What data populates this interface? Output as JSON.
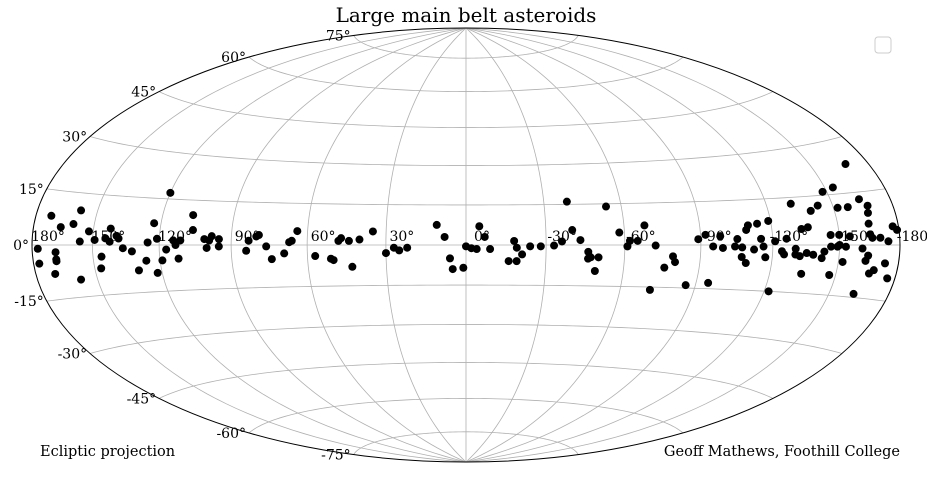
{
  "chart_data": {
    "type": "scatter",
    "title": "Large main belt asteroids",
    "projection": "hammer",
    "grid": true,
    "legend": {
      "placement": "top-right",
      "entries": []
    },
    "marker_color": "#000000",
    "grid_color": "#b0b0b0",
    "lat_ticks": [
      {
        "value": 75,
        "label": "75°"
      },
      {
        "value": 60,
        "label": "60°"
      },
      {
        "value": 45,
        "label": "45°"
      },
      {
        "value": 30,
        "label": "30°"
      },
      {
        "value": 15,
        "label": "15°"
      },
      {
        "value": 0,
        "label": "0°"
      },
      {
        "value": -15,
        "label": "-15°"
      },
      {
        "value": -30,
        "label": "-30°"
      },
      {
        "value": -45,
        "label": "-45°"
      },
      {
        "value": -60,
        "label": "-60°"
      },
      {
        "value": -75,
        "label": "-75°"
      }
    ],
    "lon_ticks": [
      {
        "value": 180,
        "label": "180°"
      },
      {
        "value": 150,
        "label": "150°"
      },
      {
        "value": 120,
        "label": "120°"
      },
      {
        "value": 90,
        "label": "90°"
      },
      {
        "value": 60,
        "label": "60°"
      },
      {
        "value": 30,
        "label": "30°"
      },
      {
        "value": 0,
        "label": "0°"
      },
      {
        "value": -30,
        "label": "-30°"
      },
      {
        "value": -60,
        "label": "-60°"
      },
      {
        "value": -90,
        "label": "-90°"
      },
      {
        "value": -120,
        "label": "-120°"
      },
      {
        "value": -150,
        "label": "-150°"
      },
      {
        "value": -180,
        "label": "-180°"
      }
    ],
    "annotations": {
      "left": "Ecliptic projection",
      "right": "Geoff Mathews, Foothill College"
    },
    "points": [
      [
        177,
        -1
      ],
      [
        177,
        -5
      ],
      [
        172,
        8
      ],
      [
        170,
        -8
      ],
      [
        168,
        -2
      ],
      [
        168,
        -4
      ],
      [
        168,
        -4.5
      ],
      [
        166,
        5
      ],
      [
        160,
        6
      ],
      [
        158,
        10
      ],
      [
        158,
        -10
      ],
      [
        156,
        1
      ],
      [
        152,
        4
      ],
      [
        149,
        1.5
      ],
      [
        147,
        -7
      ],
      [
        146,
        -3.5
      ],
      [
        144,
        2
      ],
      [
        142,
        1
      ],
      [
        142,
        5
      ],
      [
        139,
        2.8
      ],
      [
        138,
        2
      ],
      [
        136,
        -1
      ],
      [
        132,
        -2
      ],
      [
        130,
        -8
      ],
      [
        126,
        -5
      ],
      [
        125,
        0.8
      ],
      [
        123,
        7
      ],
      [
        122,
        -9
      ],
      [
        121,
        2
      ],
      [
        120,
        17
      ],
      [
        119,
        -5
      ],
      [
        117,
        -1.5
      ],
      [
        114,
        1.5
      ],
      [
        113,
        0
      ],
      [
        112,
        -4.5
      ],
      [
        111,
        1.5
      ],
      [
        107,
        10
      ],
      [
        106,
        5
      ],
      [
        101,
        2
      ],
      [
        100,
        -1
      ],
      [
        99,
        1.5
      ],
      [
        98,
        3
      ],
      [
        95,
        2
      ],
      [
        95,
        -0.5
      ],
      [
        84,
        -2
      ],
      [
        83,
        1.5
      ],
      [
        80,
        3
      ],
      [
        79,
        3.5
      ],
      [
        76,
        -0.5
      ],
      [
        74,
        -5
      ],
      [
        69,
        -3
      ],
      [
        67,
        1
      ],
      [
        66,
        1.5
      ],
      [
        64,
        5
      ],
      [
        57,
        -4
      ],
      [
        51,
        -5
      ],
      [
        50,
        -5.5
      ],
      [
        48,
        1.5
      ],
      [
        47,
        2.5
      ],
      [
        44,
        1.5
      ],
      [
        43,
        -8
      ],
      [
        40,
        2
      ],
      [
        35,
        5
      ],
      [
        30,
        -3
      ],
      [
        27,
        -1
      ],
      [
        25,
        -2
      ],
      [
        22,
        -1
      ],
      [
        11,
        7.5
      ],
      [
        8,
        3
      ],
      [
        6,
        -5
      ],
      [
        5,
        -9
      ],
      [
        1,
        -8.5
      ],
      [
        0,
        -0.5
      ],
      [
        -2,
        -1.2
      ],
      [
        -4,
        -1.5
      ],
      [
        -5,
        7
      ],
      [
        -7,
        3
      ],
      [
        -9,
        -1.5
      ],
      [
        -16,
        -6
      ],
      [
        -18,
        1.5
      ],
      [
        -19,
        -1
      ],
      [
        -19,
        -6
      ],
      [
        -21,
        -3.5
      ],
      [
        -24,
        -0.5
      ],
      [
        -28,
        -0.5
      ],
      [
        -33,
        -0.2
      ],
      [
        -36,
        1.3
      ],
      [
        -39,
        16
      ],
      [
        -40,
        5.5
      ],
      [
        -43,
        1.8
      ],
      [
        -46,
        -2.5
      ],
      [
        -46,
        -5
      ],
      [
        -47,
        -4.5
      ],
      [
        -49,
        -9.5
      ],
      [
        -50,
        -4.5
      ],
      [
        -54,
        14
      ],
      [
        -58,
        4.5
      ],
      [
        -61,
        -0.5
      ],
      [
        -62,
        1.5
      ],
      [
        -65,
        1.5
      ],
      [
        -68,
        7
      ],
      [
        -72,
        -16
      ],
      [
        -72,
        -0.2
      ],
      [
        -76,
        -8
      ],
      [
        -79,
        -4
      ],
      [
        -80,
        -6
      ],
      [
        -86,
        -14
      ],
      [
        -89,
        2
      ],
      [
        -92,
        3.5
      ],
      [
        -95,
        -13
      ],
      [
        -95,
        -0.5
      ],
      [
        -98,
        3
      ],
      [
        -99,
        -1
      ],
      [
        -104,
        -0.5
      ],
      [
        -105,
        2
      ],
      [
        -107,
        -0.8
      ],
      [
        -107,
        -4
      ],
      [
        -109,
        -6
      ],
      [
        -109,
        5
      ],
      [
        -110,
        6.5
      ],
      [
        -112,
        -1.5
      ],
      [
        -114,
        7
      ],
      [
        -115,
        2
      ],
      [
        -116,
        -0.5
      ],
      [
        -117,
        -4
      ],
      [
        -119,
        7.8
      ],
      [
        -121,
        1.2
      ],
      [
        -122,
        -15
      ],
      [
        -124,
        -2
      ],
      [
        -125,
        -3
      ],
      [
        -126,
        2
      ],
      [
        -130,
        -3
      ],
      [
        -130,
        -1.2
      ],
      [
        -131,
        13
      ],
      [
        -132,
        -3.5
      ],
      [
        -133,
        5
      ],
      [
        -134,
        -9
      ],
      [
        -135,
        -2.5
      ],
      [
        -136,
        5.5
      ],
      [
        -138,
        -3
      ],
      [
        -139,
        10.5
      ],
      [
        -142,
        -4
      ],
      [
        -143,
        -2
      ],
      [
        -143,
        12
      ],
      [
        -146,
        3
      ],
      [
        -146,
        -0.5
      ],
      [
        -147,
        -9
      ],
      [
        -148,
        16
      ],
      [
        -149,
        -0.5
      ],
      [
        -150,
        0
      ],
      [
        -150,
        3
      ],
      [
        -152,
        -5
      ],
      [
        -152,
        11
      ],
      [
        -153,
        -0.5
      ],
      [
        -154,
        17
      ],
      [
        -155,
        2.5
      ],
      [
        -157,
        11
      ],
      [
        -161,
        -1
      ],
      [
        -162,
        -14
      ],
      [
        -163,
        -4.5
      ],
      [
        -164,
        13
      ],
      [
        -164,
        -3
      ],
      [
        -165,
        3
      ],
      [
        -165,
        6
      ],
      [
        -166,
        2
      ],
      [
        -166,
        -8
      ],
      [
        -166,
        9
      ],
      [
        -167,
        11
      ],
      [
        -168,
        -7
      ],
      [
        -168,
        23
      ],
      [
        -170,
        2
      ],
      [
        -173,
        -5
      ],
      [
        -174,
        1
      ],
      [
        -176,
        -9
      ],
      [
        -177,
        5
      ],
      [
        -179,
        4
      ]
    ]
  }
}
